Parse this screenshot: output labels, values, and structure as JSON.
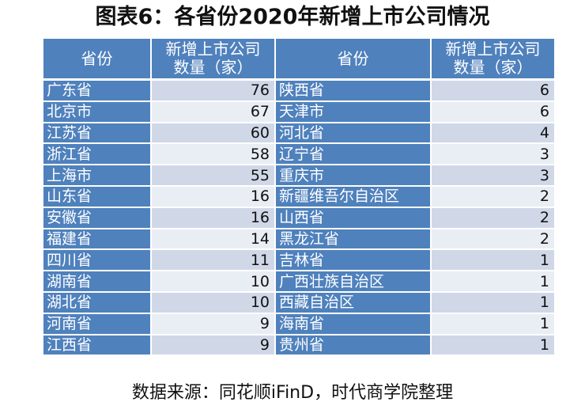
{
  "title": "图表6：各省份2020年新增上市公司情况",
  "headers": {
    "province_left": "省份",
    "count_left_line1": "新增上市公司",
    "count_left_line2": "数量（家）",
    "province_right": "省份",
    "count_right_line1": "新增上市公司",
    "count_right_line2": "数量（家）"
  },
  "rows": [
    {
      "p1": "广东省",
      "n1": "76",
      "p2": "陕西省",
      "n2": "6"
    },
    {
      "p1": "北京市",
      "n1": "67",
      "p2": "天津市",
      "n2": "6"
    },
    {
      "p1": "江苏省",
      "n1": "60",
      "p2": "河北省",
      "n2": "4"
    },
    {
      "p1": "浙江省",
      "n1": "58",
      "p2": "辽宁省",
      "n2": "3"
    },
    {
      "p1": "上海市",
      "n1": "55",
      "p2": "重庆市",
      "n2": "3"
    },
    {
      "p1": "山东省",
      "n1": "16",
      "p2": "新疆维吾尔自治区",
      "n2": "2"
    },
    {
      "p1": "安徽省",
      "n1": "16",
      "p2": "山西省",
      "n2": "2"
    },
    {
      "p1": "福建省",
      "n1": "14",
      "p2": "黑龙江省",
      "n2": "2"
    },
    {
      "p1": "四川省",
      "n1": "11",
      "p2": "吉林省",
      "n2": "1"
    },
    {
      "p1": "湖南省",
      "n1": "10",
      "p2": "广西壮族自治区",
      "n2": "1"
    },
    {
      "p1": "湖北省",
      "n1": "10",
      "p2": "西藏自治区",
      "n2": "1"
    },
    {
      "p1": "河南省",
      "n1": "9",
      "p2": "海南省",
      "n2": "1"
    },
    {
      "p1": "江西省",
      "n1": "9",
      "p2": "贵州省",
      "n2": "1"
    }
  ],
  "source": "数据来源：同花顺iFinD，时代商学院整理"
}
